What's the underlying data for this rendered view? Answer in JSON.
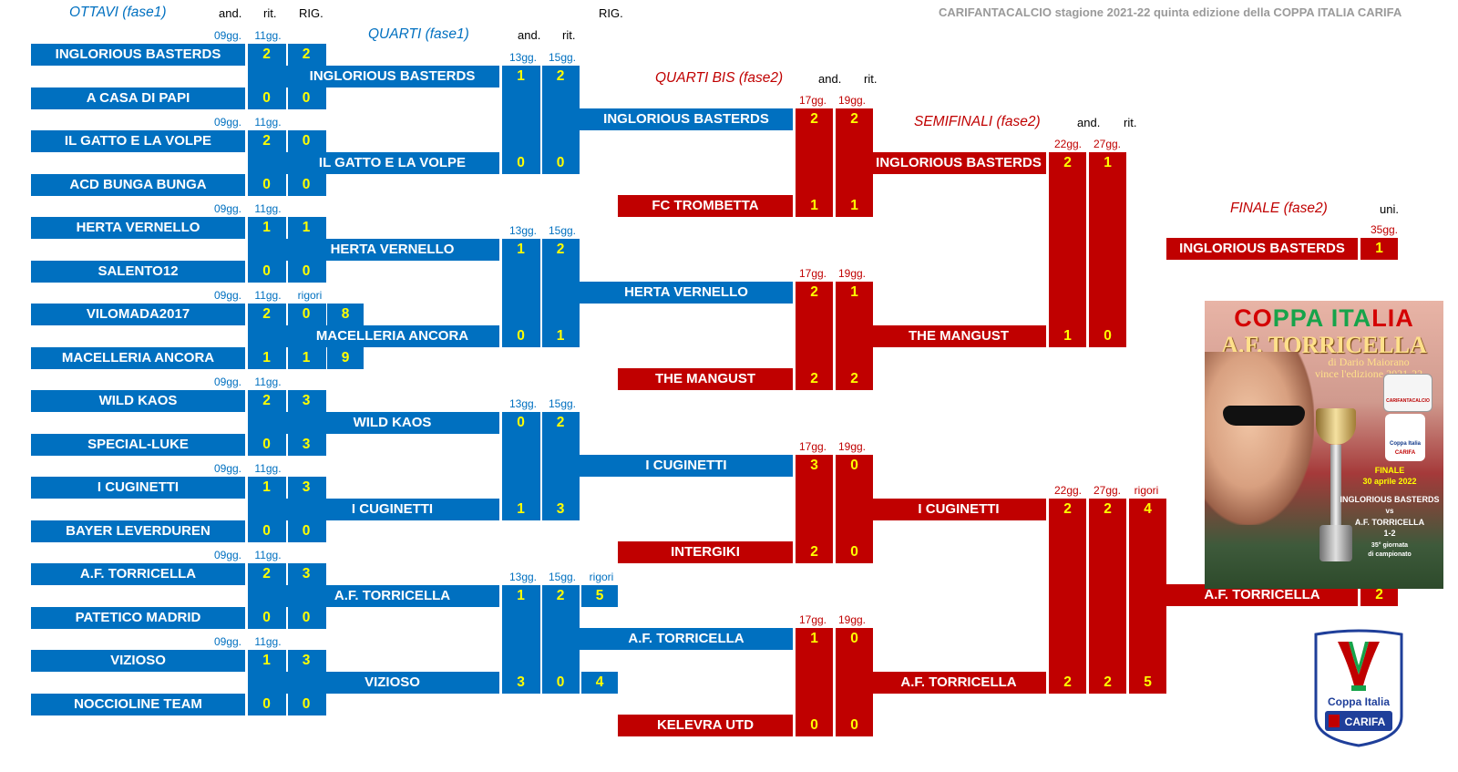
{
  "header": {
    "title": "CARIFANTACALCIO stagione 2021-22 quinta edizione della COPPA ITALIA CARIFA"
  },
  "colors": {
    "blue": "#0070c0",
    "red": "#c00000",
    "score": "#ffff00",
    "label_blue": "#0070c0",
    "label_red": "#c00000"
  },
  "stages": {
    "ottavi": "OTTAVI (fase1)",
    "quarti": "QUARTI (fase1)",
    "quarti_bis": "QUARTI BIS (fase2)",
    "semifinali": "SEMIFINALI (fase2)",
    "finale": "FINALE (fase2)"
  },
  "column_headers": {
    "ottavi": {
      "and": "and.",
      "rit": "rit.",
      "rig": "RIG."
    },
    "quarti": {
      "and": "and.",
      "rit": "rit.",
      "rig": "RIG."
    },
    "quarti_bis": {
      "and": "and.",
      "rit": "rit."
    },
    "semifinali": {
      "and": "and.",
      "rit": "rit."
    },
    "finale": {
      "uni": "uni."
    }
  },
  "ottavi": [
    {
      "round": [
        "09gg.",
        "11gg."
      ],
      "extra": "",
      "teams": [
        {
          "name": "INGLORIOUS BASTERDS",
          "scores": [
            "2",
            "2"
          ]
        },
        {
          "name": "A CASA DI PAPI",
          "scores": [
            "0",
            "0"
          ]
        }
      ]
    },
    {
      "round": [
        "09gg.",
        "11gg."
      ],
      "extra": "",
      "teams": [
        {
          "name": "IL GATTO E LA VOLPE",
          "scores": [
            "2",
            "0"
          ]
        },
        {
          "name": "ACD BUNGA BUNGA",
          "scores": [
            "0",
            "0"
          ]
        }
      ]
    },
    {
      "round": [
        "09gg.",
        "11gg."
      ],
      "extra": "",
      "teams": [
        {
          "name": "HERTA VERNELLO",
          "scores": [
            "1",
            "1"
          ]
        },
        {
          "name": "SALENTO12",
          "scores": [
            "0",
            "0"
          ]
        }
      ]
    },
    {
      "round": [
        "09gg.",
        "11gg."
      ],
      "extra": "rigori",
      "teams": [
        {
          "name": "VILOMADA2017",
          "scores": [
            "2",
            "0",
            "8"
          ]
        },
        {
          "name": "MACELLERIA ANCORA",
          "scores": [
            "1",
            "1",
            "9"
          ]
        }
      ]
    },
    {
      "round": [
        "09gg.",
        "11gg."
      ],
      "extra": "",
      "teams": [
        {
          "name": "WILD KAOS",
          "scores": [
            "2",
            "3"
          ]
        },
        {
          "name": "SPECIAL-LUKE",
          "scores": [
            "0",
            "3"
          ]
        }
      ]
    },
    {
      "round": [
        "09gg.",
        "11gg."
      ],
      "extra": "",
      "teams": [
        {
          "name": "I CUGINETTI",
          "scores": [
            "1",
            "3"
          ]
        },
        {
          "name": "BAYER LEVERDUREN",
          "scores": [
            "0",
            "0"
          ]
        }
      ]
    },
    {
      "round": [
        "09gg.",
        "11gg."
      ],
      "extra": "",
      "teams": [
        {
          "name": "A.F. TORRICELLA",
          "scores": [
            "2",
            "3"
          ]
        },
        {
          "name": "PATETICO MADRID",
          "scores": [
            "0",
            "0"
          ]
        }
      ]
    },
    {
      "round": [
        "09gg.",
        "11gg."
      ],
      "extra": "",
      "teams": [
        {
          "name": "VIZIOSO",
          "scores": [
            "1",
            "3"
          ]
        },
        {
          "name": "NOCCIOLINE TEAM",
          "scores": [
            "0",
            "0"
          ]
        }
      ]
    }
  ],
  "quarti": [
    {
      "round": [
        "13gg.",
        "15gg."
      ],
      "extra": "",
      "teams": [
        {
          "name": "INGLORIOUS BASTERDS",
          "scores": [
            "1",
            "2"
          ]
        },
        {
          "name": "IL GATTO E LA VOLPE",
          "scores": [
            "0",
            "0"
          ]
        }
      ]
    },
    {
      "round": [
        "13gg.",
        "15gg."
      ],
      "extra": "",
      "teams": [
        {
          "name": "HERTA VERNELLO",
          "scores": [
            "1",
            "2"
          ]
        },
        {
          "name": "MACELLERIA ANCORA",
          "scores": [
            "0",
            "1"
          ]
        }
      ]
    },
    {
      "round": [
        "13gg.",
        "15gg."
      ],
      "extra": "",
      "teams": [
        {
          "name": "WILD KAOS",
          "scores": [
            "0",
            "2"
          ]
        },
        {
          "name": "I CUGINETTI",
          "scores": [
            "1",
            "3"
          ]
        }
      ]
    },
    {
      "round": [
        "13gg.",
        "15gg."
      ],
      "extra": "rigori",
      "teams": [
        {
          "name": "A.F. TORRICELLA",
          "scores": [
            "1",
            "2",
            "5"
          ]
        },
        {
          "name": "VIZIOSO",
          "scores": [
            "3",
            "0",
            "4"
          ]
        }
      ]
    }
  ],
  "quarti_bis": [
    {
      "round": [
        "17gg.",
        "19gg."
      ],
      "teams": [
        {
          "name": "INGLORIOUS BASTERDS",
          "scores": [
            "2",
            "2"
          ],
          "color": "blue"
        },
        {
          "name": "FC TROMBETTA",
          "scores": [
            "1",
            "1"
          ],
          "color": "red"
        }
      ]
    },
    {
      "round": [
        "17gg.",
        "19gg."
      ],
      "teams": [
        {
          "name": "HERTA VERNELLO",
          "scores": [
            "2",
            "1"
          ],
          "color": "blue"
        },
        {
          "name": "THE MANGUST",
          "scores": [
            "2",
            "2"
          ],
          "color": "red"
        }
      ]
    },
    {
      "round": [
        "17gg.",
        "19gg."
      ],
      "teams": [
        {
          "name": "I CUGINETTI",
          "scores": [
            "3",
            "0"
          ],
          "color": "blue"
        },
        {
          "name": "INTERGIKI",
          "scores": [
            "2",
            "0"
          ],
          "color": "red"
        }
      ]
    },
    {
      "round": [
        "17gg.",
        "19gg."
      ],
      "teams": [
        {
          "name": "A.F. TORRICELLA",
          "scores": [
            "1",
            "0"
          ],
          "color": "blue"
        },
        {
          "name": "KELEVRA UTD",
          "scores": [
            "0",
            "0"
          ],
          "color": "red"
        }
      ]
    }
  ],
  "semifinali": [
    {
      "round": [
        "22gg.",
        "27gg."
      ],
      "extra": "",
      "teams": [
        {
          "name": "INGLORIOUS BASTERDS",
          "scores": [
            "2",
            "1"
          ]
        },
        {
          "name": "THE MANGUST",
          "scores": [
            "1",
            "0"
          ]
        }
      ]
    },
    {
      "round": [
        "22gg.",
        "27gg."
      ],
      "extra": "rigori",
      "teams": [
        {
          "name": "I CUGINETTI",
          "scores": [
            "2",
            "2",
            "4"
          ]
        },
        {
          "name": "A.F. TORRICELLA",
          "scores": [
            "2",
            "2",
            "5"
          ]
        }
      ]
    }
  ],
  "finale": {
    "round": "35gg.",
    "teams": [
      {
        "name": "INGLORIOUS BASTERDS",
        "score": "1"
      },
      {
        "name": "A.F. TORRICELLA",
        "score": "2"
      }
    ]
  },
  "poster": {
    "title_red": "CO",
    "title_green": "PPA ITA",
    "title_red2": "LIA",
    "subtitle": "A.F. TORRICELLA",
    "by": "di Dario Maiorano",
    "wins": "vince l'edizione 2021-22",
    "final": "FINALE",
    "date": "30 aprile 2022",
    "team1": "INGLORIOUS BASTERDS",
    "vs": "vs",
    "team2": "A.F. TORRICELLA",
    "result": "1-2",
    "matchday": "35° giornata",
    "matchday2": "di campionato",
    "badge": "CARIFANTACALCIO",
    "mini_logo": "Coppa Italia",
    "mini_logo2": "CARIFA"
  },
  "logo": {
    "line1": "Coppa Italia",
    "line2": "CARIFA"
  }
}
